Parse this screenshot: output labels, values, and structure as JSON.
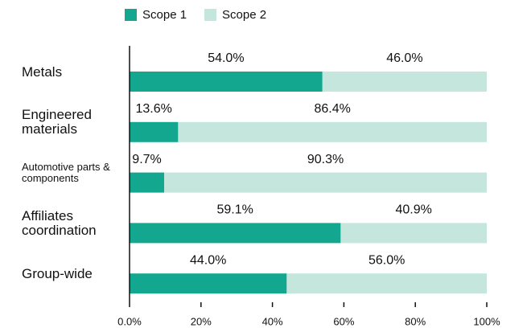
{
  "chart_data": {
    "type": "stacked_bar_horizontal",
    "categories": [
      "Metals",
      "Engineered materials",
      "Automotive parts & components",
      "Affiliates coordination",
      "Group-wide"
    ],
    "series": [
      {
        "name": "Scope 1",
        "color": "#13a78f",
        "values": [
          54.0,
          13.6,
          9.7,
          59.1,
          44.0
        ],
        "value_labels": [
          "54.0%",
          "13.6%",
          "9.7%",
          "59.1%",
          "44.0%"
        ]
      },
      {
        "name": "Scope 2",
        "color": "#c4e6dd",
        "values": [
          46.0,
          86.4,
          90.3,
          40.9,
          56.0
        ],
        "value_labels": [
          "46.0%",
          "86.4%",
          "90.3%",
          "40.9%",
          "56.0%"
        ]
      }
    ],
    "xlim": [
      0,
      100
    ],
    "xticks": [
      {
        "value": 0,
        "label": "0.0%"
      },
      {
        "value": 20,
        "label": "20%"
      },
      {
        "value": 40,
        "label": "40%"
      },
      {
        "value": 60,
        "label": "60%"
      },
      {
        "value": 80,
        "label": "80%"
      },
      {
        "value": 100,
        "label": "100%"
      }
    ],
    "legend": "top"
  }
}
